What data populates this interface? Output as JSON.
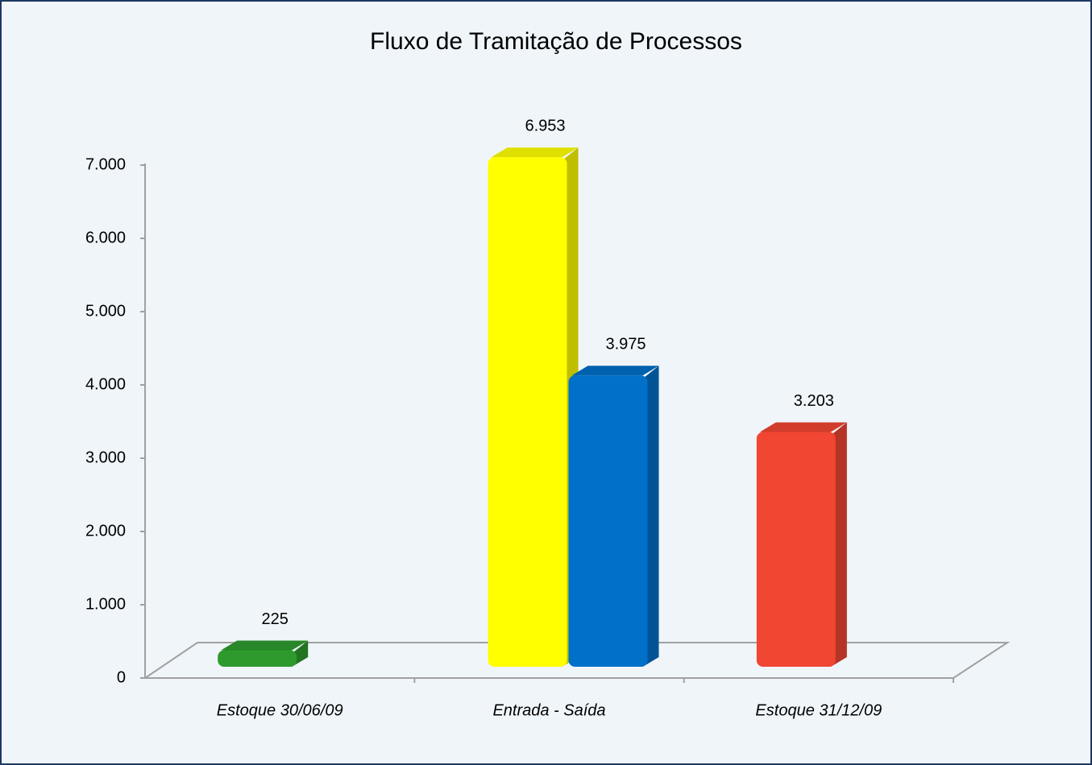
{
  "chart_data": {
    "type": "bar",
    "title": "Fluxo de Tramitação de Processos",
    "categories": [
      "Estoque 30/06/09",
      "Entrada - Saída",
      "Estoque 31/12/09"
    ],
    "series": [
      {
        "color": "#2e9a2e",
        "values": [
          225,
          null,
          null
        ],
        "value_labels": [
          "225",
          null,
          null
        ]
      },
      {
        "color": "#ffff00",
        "values": [
          null,
          6953,
          null
        ],
        "value_labels": [
          null,
          "6.953",
          null
        ]
      },
      {
        "color": "#0070c8",
        "values": [
          null,
          3975,
          null
        ],
        "value_labels": [
          null,
          "3.975",
          null
        ]
      },
      {
        "color": "#f04632",
        "values": [
          null,
          null,
          3203
        ],
        "value_labels": [
          null,
          null,
          "3.203"
        ]
      }
    ],
    "ylim": [
      0,
      7000
    ],
    "yticks": [
      0,
      {
        "value": 1000,
        "label": "1.000"
      },
      {
        "value": 2000,
        "label": "2.000"
      },
      {
        "value": 3000,
        "label": "3.000"
      },
      {
        "value": 4000,
        "label": "4.000"
      },
      {
        "value": 5000,
        "label": "5.000"
      },
      {
        "value": 6000,
        "label": "6.000"
      },
      {
        "value": 7000,
        "label": "7.000"
      }
    ]
  }
}
